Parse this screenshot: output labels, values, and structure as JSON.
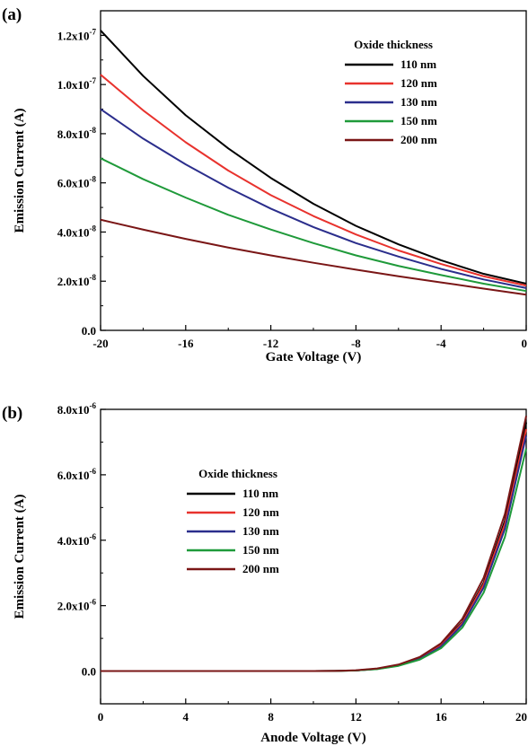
{
  "chart_data": [
    {
      "panel": "(a)",
      "type": "line",
      "xlabel": "Gate Voltage (V)",
      "ylabel": "Emission Current (A)",
      "xlim": [
        -20,
        0
      ],
      "ylim": [
        0,
        1.3e-07
      ],
      "x_ticks": [
        -20,
        -16,
        -12,
        -8,
        -4,
        0
      ],
      "x_tick_labels": [
        "-20",
        "-16",
        "-12",
        "-8",
        "-4",
        "0"
      ],
      "y_ticks": [
        0,
        2e-08,
        4e-08,
        6e-08,
        8e-08,
        1e-07,
        1.2e-07
      ],
      "y_tick_labels": [
        {
          "mantissa": "0.0",
          "exp": ""
        },
        {
          "mantissa": "2.0x10",
          "exp": "-8"
        },
        {
          "mantissa": "4.0x10",
          "exp": "-8"
        },
        {
          "mantissa": "6.0x10",
          "exp": "-8"
        },
        {
          "mantissa": "8.0x10",
          "exp": "-8"
        },
        {
          "mantissa": "1.0x10",
          "exp": "-7"
        },
        {
          "mantissa": "1.2x10",
          "exp": "-7"
        }
      ],
      "grid": false,
      "legend_title": "Oxide thickness",
      "legend_position": "top-right",
      "x": [
        -20,
        -18,
        -16,
        -14,
        -12,
        -10,
        -8,
        -6,
        -4,
        -2,
        0
      ],
      "series": [
        {
          "name": "110 nm",
          "color": "#000000",
          "values": [
            1.22e-07,
            1.035e-07,
            8.75e-08,
            7.4e-08,
            6.2e-08,
            5.15e-08,
            4.25e-08,
            3.5e-08,
            2.85e-08,
            2.3e-08,
            1.9e-08
          ]
        },
        {
          "name": "120 nm",
          "color": "#e8322d",
          "values": [
            1.04e-07,
            8.95e-08,
            7.65e-08,
            6.5e-08,
            5.5e-08,
            4.65e-08,
            3.9e-08,
            3.25e-08,
            2.7e-08,
            2.2e-08,
            1.82e-08
          ]
        },
        {
          "name": "130 nm",
          "color": "#2b2e8c",
          "values": [
            9e-08,
            7.8e-08,
            6.75e-08,
            5.8e-08,
            4.95e-08,
            4.2e-08,
            3.55e-08,
            3e-08,
            2.5e-08,
            2.07e-08,
            1.72e-08
          ]
        },
        {
          "name": "150 nm",
          "color": "#1f9a3a",
          "values": [
            7e-08,
            6.15e-08,
            5.4e-08,
            4.7e-08,
            4.1e-08,
            3.55e-08,
            3.05e-08,
            2.62e-08,
            2.25e-08,
            1.9e-08,
            1.6e-08
          ]
        },
        {
          "name": "200 nm",
          "color": "#7a1616",
          "values": [
            4.5e-08,
            4.1e-08,
            3.72e-08,
            3.37e-08,
            3.05e-08,
            2.75e-08,
            2.47e-08,
            2.2e-08,
            1.95e-08,
            1.7e-08,
            1.45e-08
          ]
        }
      ]
    },
    {
      "panel": "(b)",
      "type": "line",
      "xlabel": "Anode Voltage (V)",
      "ylabel": "Emission Current (A)",
      "xlim": [
        0,
        20
      ],
      "ylim": [
        -1e-06,
        8e-06
      ],
      "x_ticks": [
        0,
        4,
        8,
        12,
        16,
        20
      ],
      "x_tick_labels": [
        "0",
        "4",
        "8",
        "12",
        "16",
        "20"
      ],
      "y_ticks": [
        0,
        2e-06,
        4e-06,
        6e-06,
        8e-06
      ],
      "y_tick_labels": [
        {
          "mantissa": "0.0",
          "exp": ""
        },
        {
          "mantissa": "2.0x10",
          "exp": "-6"
        },
        {
          "mantissa": "4.0x10",
          "exp": "-6"
        },
        {
          "mantissa": "6.0x10",
          "exp": "-6"
        },
        {
          "mantissa": "8.0x10",
          "exp": "-6"
        }
      ],
      "grid": false,
      "legend_title": "Oxide thickness",
      "legend_position": "top-left",
      "x": [
        0,
        2,
        4,
        6,
        8,
        10,
        11,
        12,
        13,
        14,
        15,
        16,
        17,
        18,
        19,
        20
      ],
      "series": [
        {
          "name": "110 nm",
          "color": "#000000",
          "values": [
            0,
            0,
            0,
            0,
            0,
            0,
            5e-09,
            2e-08,
            7e-08,
            1.8e-07,
            4e-07,
            8e-07,
            1.5e-06,
            2.7e-06,
            4.6e-06,
            7.6e-06
          ]
        },
        {
          "name": "120 nm",
          "color": "#e8322d",
          "values": [
            0,
            0,
            0,
            0,
            0,
            0,
            5e-09,
            2e-08,
            7e-08,
            1.8e-07,
            3.9e-07,
            7.8e-07,
            1.47e-06,
            2.65e-06,
            4.5e-06,
            7.4e-06
          ]
        },
        {
          "name": "130 nm",
          "color": "#2b2e8c",
          "values": [
            0,
            0,
            0,
            0,
            0,
            0,
            5e-09,
            2e-08,
            6.5e-08,
            1.7e-07,
            3.7e-07,
            7.5e-07,
            1.42e-06,
            2.55e-06,
            4.35e-06,
            7.2e-06
          ]
        },
        {
          "name": "150 nm",
          "color": "#1f9a3a",
          "values": [
            0,
            0,
            0,
            0,
            0,
            0,
            4e-09,
            1.8e-08,
            6e-08,
            1.6e-07,
            3.5e-07,
            7e-07,
            1.33e-06,
            2.4e-06,
            4.1e-06,
            6.8e-06
          ]
        },
        {
          "name": "200 nm",
          "color": "#7a1616",
          "values": [
            0,
            0,
            0,
            0,
            0,
            0,
            6e-09,
            2.5e-08,
            8e-08,
            2e-07,
            4.3e-07,
            8.5e-07,
            1.6e-06,
            2.85e-06,
            4.8e-06,
            7.8e-06
          ]
        }
      ]
    }
  ]
}
